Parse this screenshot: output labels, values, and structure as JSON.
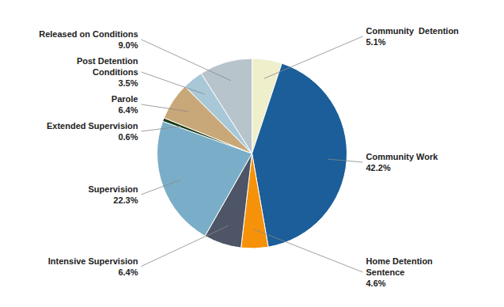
{
  "chart_data": {
    "type": "pie",
    "categories": [
      "Community  Detention",
      "Community Work",
      "Home Detention\nSentence",
      "Intensive Supervision",
      "Supervision",
      "Extended Supervision",
      "Parole",
      "Post Detention\nConditions",
      "Released on Conditions"
    ],
    "values": [
      5.1,
      42.2,
      4.6,
      6.4,
      22.3,
      0.6,
      6.4,
      3.5,
      9.0
    ],
    "value_labels": [
      "5.1%",
      "42.2%",
      "4.6%",
      "6.4%",
      "22.3%",
      "0.6%",
      "6.4%",
      "3.5%",
      "9.0%"
    ],
    "colors": [
      "#EFEFCC",
      "#1B5E99",
      "#F5920A",
      "#4D5566",
      "#7AAEC8",
      "#1A3A1A",
      "#C8A878",
      "#A8C8D8",
      "#B8C4CC"
    ],
    "data_labels": true
  }
}
